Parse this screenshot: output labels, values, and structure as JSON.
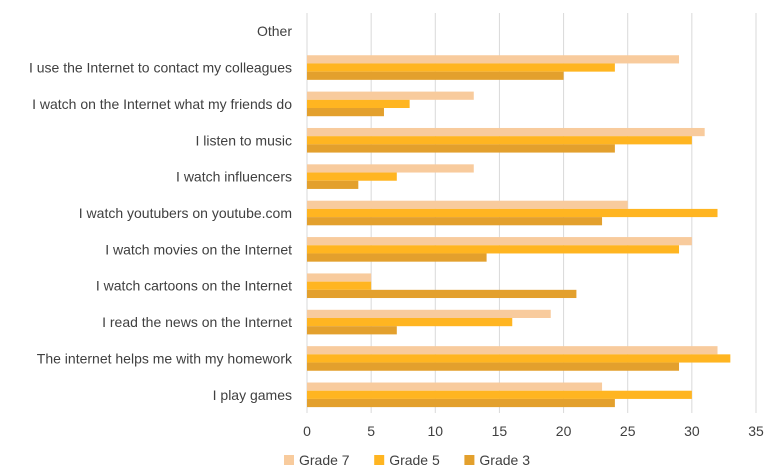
{
  "chart_data": {
    "type": "bar",
    "orientation": "horizontal",
    "categories": [
      "I play games",
      "The internet helps me with my homework",
      "I read the news on the Internet",
      "I watch cartoons on the Internet",
      "I watch movies on the Internet",
      "I watch youtubers on youtube.com",
      "I watch influencers",
      "I listen to music",
      "I watch on the Internet what my friends do",
      "I use the Internet to contact my colleagues",
      "Other"
    ],
    "series": [
      {
        "name": "Grade 7",
        "color": "#f8cb9d",
        "values": [
          23,
          32,
          19,
          5,
          30,
          25,
          13,
          31,
          13,
          29,
          0
        ]
      },
      {
        "name": "Grade 5",
        "color": "#ffb521",
        "values": [
          30,
          33,
          16,
          5,
          29,
          32,
          7,
          30,
          8,
          24,
          0
        ]
      },
      {
        "name": "Grade 3",
        "color": "#e3a02d",
        "values": [
          24,
          29,
          7,
          21,
          14,
          23,
          4,
          24,
          6,
          20,
          0
        ]
      }
    ],
    "xlim": [
      0,
      35
    ],
    "xticks": [
      "0",
      "5",
      "10",
      "15",
      "20",
      "25",
      "30",
      "35"
    ],
    "grid": true,
    "legend": "bottom"
  }
}
